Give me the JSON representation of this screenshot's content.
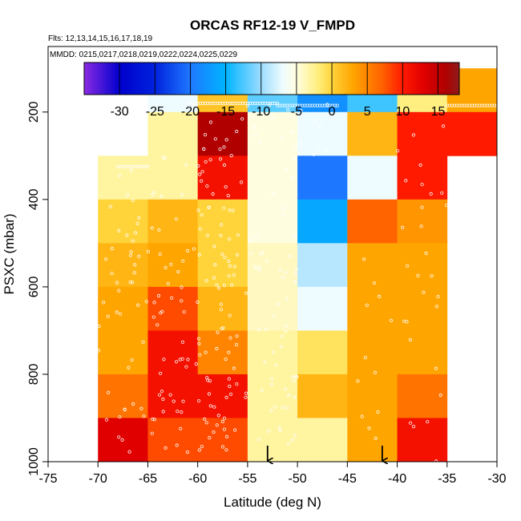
{
  "chart_data": {
    "type": "heatmap",
    "title": "ORCAS RF12-19 V_FMPD",
    "subtitle_flights": "Flts: 12,13,14,15,16,17,18,19",
    "subtitle_dates": "MMDD: 0215,0217,0218,0219,0222,0224,0225,0229",
    "xlabel": "Latitude (deg N)",
    "ylabel": "PSXC (mbar)",
    "xlim": [
      -75,
      -30
    ],
    "ylim": [
      1000,
      50
    ],
    "x_ticks": [
      "-75",
      "-70",
      "-65",
      "-60",
      "-55",
      "-50",
      "-45",
      "-40",
      "-35",
      "-30"
    ],
    "y_ticks": [
      "200",
      "400",
      "600",
      "800",
      "1000"
    ],
    "colorbar": {
      "range": [
        -35,
        18
      ],
      "ticks": [
        "-30",
        "-25",
        "-20",
        "-15",
        "-10",
        "-5",
        "0",
        "5",
        "10",
        "15"
      ],
      "stops": [
        {
          "v": -35,
          "c": "#8a2be2"
        },
        {
          "v": -30,
          "c": "#0000cc"
        },
        {
          "v": -25,
          "c": "#0022dd"
        },
        {
          "v": -20,
          "c": "#1e78ff"
        },
        {
          "v": -15,
          "c": "#00b4ff"
        },
        {
          "v": -10,
          "c": "#9bdcff"
        },
        {
          "v": -7,
          "c": "#eefcff"
        },
        {
          "v": -5,
          "c": "#fffde0"
        },
        {
          "v": -2,
          "c": "#ffef80"
        },
        {
          "v": 0,
          "c": "#ffd43a"
        },
        {
          "v": 3,
          "c": "#ffa500"
        },
        {
          "v": 7,
          "c": "#ff6400"
        },
        {
          "v": 10,
          "c": "#ff1a00"
        },
        {
          "v": 13,
          "c": "#e00000"
        },
        {
          "v": 16,
          "c": "#b00000"
        },
        {
          "v": 18,
          "c": "#8e1a1a"
        }
      ]
    },
    "x_bins": [
      -70,
      -65,
      -60,
      -55,
      -50,
      -45,
      -40,
      -35,
      -30
    ],
    "y_bins": [
      100,
      200,
      300,
      400,
      500,
      600,
      700,
      800,
      900,
      1000
    ],
    "values": [
      [
        null,
        -7,
        1,
        -12,
        -18,
        -13,
        -2,
        3
      ],
      [
        null,
        -3,
        16,
        -5,
        -7,
        2,
        10,
        10
      ],
      [
        -3,
        -3,
        11,
        -5,
        -20,
        -7,
        10,
        null
      ],
      [
        0,
        2,
        0,
        -5,
        -16,
        7,
        4,
        null
      ],
      [
        2,
        3,
        0,
        -4,
        -9,
        3,
        3,
        null
      ],
      [
        3,
        8,
        2,
        -4,
        -7,
        3,
        3,
        null
      ],
      [
        3,
        11,
        5,
        -3,
        -1,
        3,
        3,
        null
      ],
      [
        6,
        11,
        11,
        -3,
        2,
        3,
        6,
        null
      ],
      [
        13,
        8,
        8,
        -3,
        -3,
        3,
        11,
        null
      ]
    ],
    "arrows_at_latitude": [
      -53,
      -41.5
    ]
  }
}
